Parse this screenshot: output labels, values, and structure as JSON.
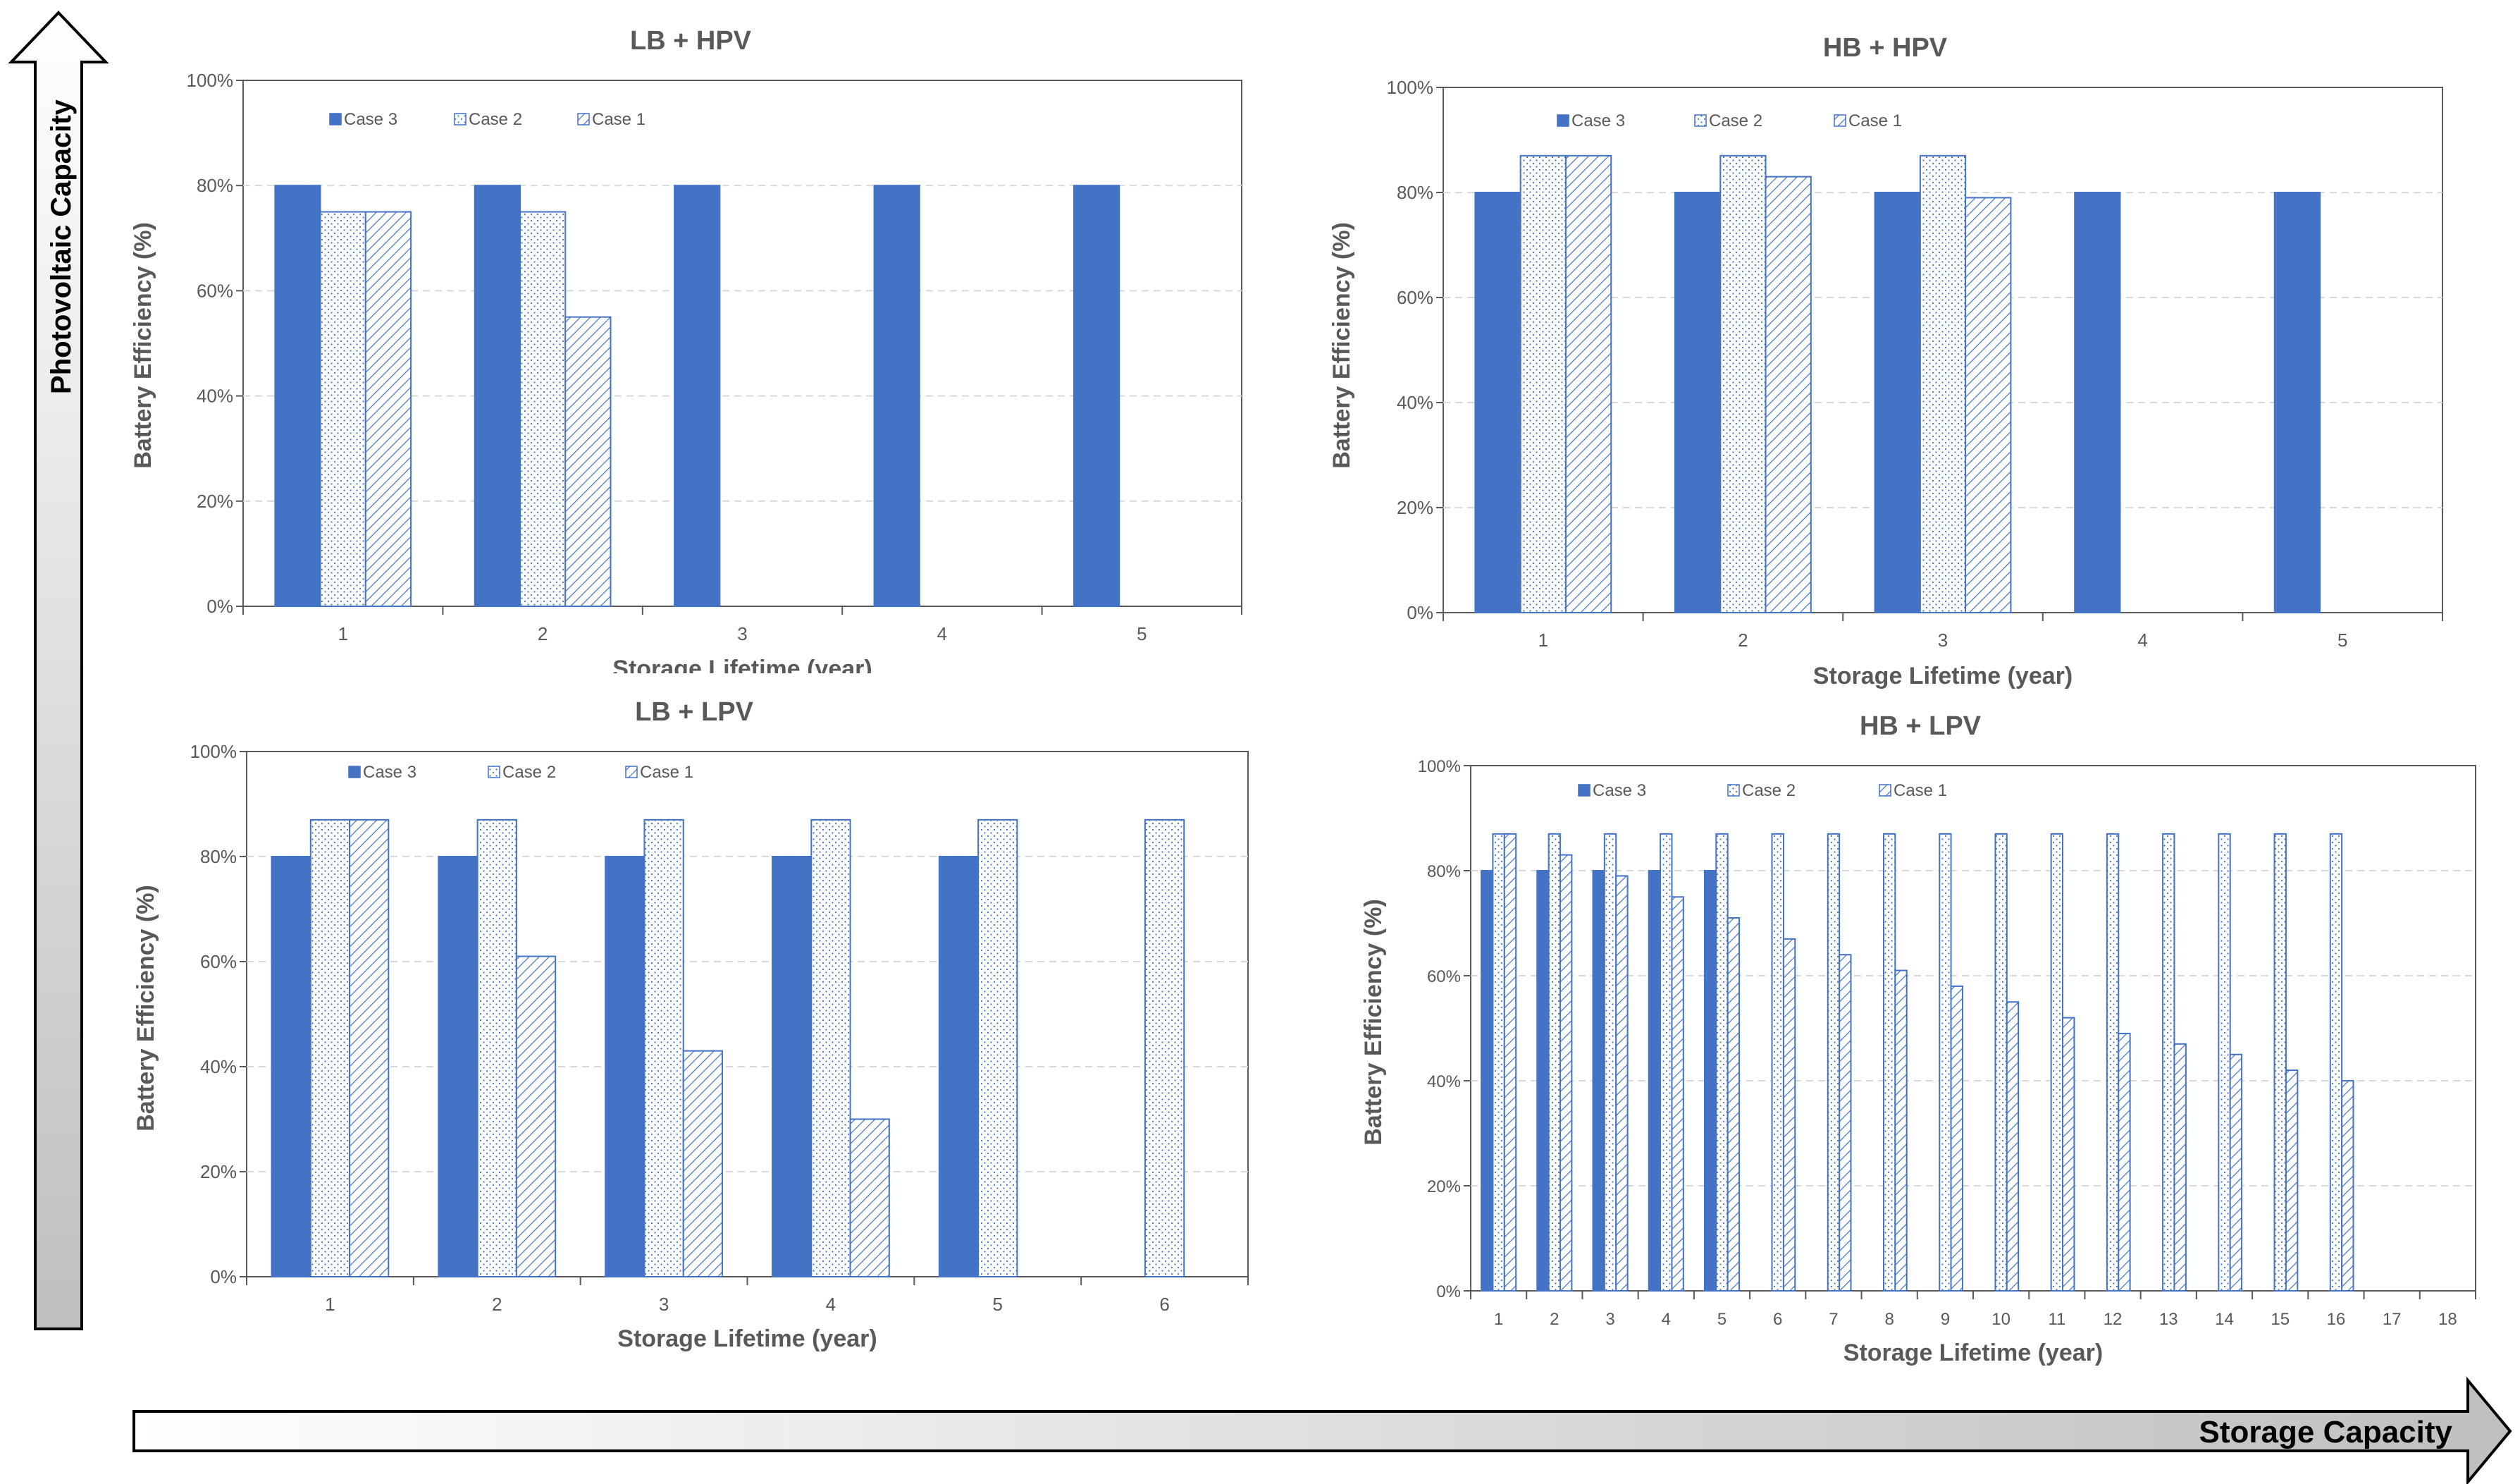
{
  "colors": {
    "case3": "#4472c4",
    "pattern": "#4472c4",
    "grid": "#d9d9d9",
    "text": "#595959"
  },
  "arrows": {
    "vertical_label": "Photovoltaic Capacity",
    "horizontal_label": "Storage Capacity"
  },
  "chart_data": [
    {
      "type": "bar",
      "title": "LB + HPV",
      "xlabel": "Storage Lifetime (year)",
      "ylabel": "Battery Efficiency (%)",
      "ylim": [
        0,
        100
      ],
      "yticks": [
        "0%",
        "20%",
        "40%",
        "60%",
        "80%",
        "100%"
      ],
      "legend": [
        "Case 3",
        "Case 2",
        "Case 1"
      ],
      "categories": [
        "1",
        "2",
        "3",
        "4",
        "5"
      ],
      "series": [
        {
          "name": "Case 3",
          "values": [
            80,
            80,
            80,
            80,
            80
          ]
        },
        {
          "name": "Case 2",
          "values": [
            75,
            75,
            null,
            null,
            null
          ]
        },
        {
          "name": "Case 1",
          "values": [
            75,
            55,
            null,
            null,
            null
          ]
        }
      ]
    },
    {
      "type": "bar",
      "title": "HB + HPV",
      "xlabel": "Storage Lifetime (year)",
      "ylabel": "Battery Efficiency (%)",
      "ylim": [
        0,
        100
      ],
      "yticks": [
        "0%",
        "20%",
        "40%",
        "60%",
        "80%",
        "100%"
      ],
      "legend": [
        "Case 3",
        "Case 2",
        "Case 1"
      ],
      "categories": [
        "1",
        "2",
        "3",
        "4",
        "5"
      ],
      "series": [
        {
          "name": "Case 3",
          "values": [
            80,
            80,
            80,
            80,
            80
          ]
        },
        {
          "name": "Case 2",
          "values": [
            87,
            87,
            87,
            null,
            null
          ]
        },
        {
          "name": "Case 1",
          "values": [
            87,
            83,
            79,
            null,
            null
          ]
        }
      ]
    },
    {
      "type": "bar",
      "title": "LB + LPV",
      "xlabel": "Storage Lifetime (year)",
      "ylabel": "Battery Efficiency (%)",
      "ylim": [
        0,
        100
      ],
      "yticks": [
        "0%",
        "20%",
        "40%",
        "60%",
        "80%",
        "100%"
      ],
      "legend": [
        "Case 3",
        "Case 2",
        "Case 1"
      ],
      "categories": [
        "1",
        "2",
        "3",
        "4",
        "5",
        "6"
      ],
      "series": [
        {
          "name": "Case 3",
          "values": [
            80,
            80,
            80,
            80,
            80,
            null
          ]
        },
        {
          "name": "Case 2",
          "values": [
            87,
            87,
            87,
            87,
            87,
            87
          ]
        },
        {
          "name": "Case 1",
          "values": [
            87,
            61,
            43,
            30,
            null,
            null
          ]
        }
      ]
    },
    {
      "type": "bar",
      "title": "HB + LPV",
      "xlabel": "Storage Lifetime (year)",
      "ylabel": "Battery Efficiency (%)",
      "ylim": [
        0,
        100
      ],
      "yticks": [
        "0%",
        "20%",
        "40%",
        "60%",
        "80%",
        "100%"
      ],
      "legend": [
        "Case 3",
        "Case 2",
        "Case 1"
      ],
      "categories": [
        "1",
        "2",
        "3",
        "4",
        "5",
        "6",
        "7",
        "8",
        "9",
        "10",
        "11",
        "12",
        "13",
        "14",
        "15",
        "16",
        "17",
        "18"
      ],
      "series": [
        {
          "name": "Case 3",
          "values": [
            80,
            80,
            80,
            80,
            80,
            null,
            null,
            null,
            null,
            null,
            null,
            null,
            null,
            null,
            null,
            null,
            null,
            null
          ]
        },
        {
          "name": "Case 2",
          "values": [
            87,
            87,
            87,
            87,
            87,
            87,
            87,
            87,
            87,
            87,
            87,
            87,
            87,
            87,
            87,
            87,
            null,
            null
          ]
        },
        {
          "name": "Case 1",
          "values": [
            87,
            83,
            79,
            75,
            71,
            67,
            64,
            61,
            58,
            55,
            52,
            49,
            47,
            45,
            42,
            40,
            null,
            null
          ]
        }
      ]
    }
  ]
}
